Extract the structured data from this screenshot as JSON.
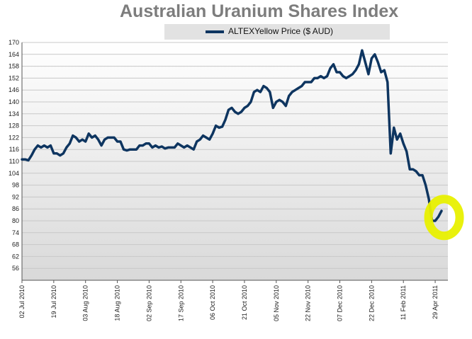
{
  "chart_data": {
    "type": "line",
    "title": "Australian Uranium Shares Index",
    "series": [
      {
        "name": "ALTEXYellow Price ($ AUD)",
        "color": "#0e3560",
        "points": [
          [
            0,
            111
          ],
          [
            1,
            111
          ],
          [
            2,
            110.5
          ],
          [
            3,
            113
          ],
          [
            4,
            116
          ],
          [
            5,
            118
          ],
          [
            6,
            117
          ],
          [
            7,
            118
          ],
          [
            8,
            117
          ],
          [
            9,
            118
          ],
          [
            10,
            114
          ],
          [
            11,
            114
          ],
          [
            12,
            113
          ],
          [
            13,
            114
          ],
          [
            14,
            117
          ],
          [
            15,
            119
          ],
          [
            16,
            123
          ],
          [
            17,
            122
          ],
          [
            18,
            120
          ],
          [
            19,
            121
          ],
          [
            20,
            120
          ],
          [
            21,
            124
          ],
          [
            22,
            122
          ],
          [
            23,
            123
          ],
          [
            24,
            121
          ],
          [
            25,
            118
          ],
          [
            26,
            121
          ],
          [
            27,
            122
          ],
          [
            28,
            122
          ],
          [
            29,
            122
          ],
          [
            30,
            120
          ],
          [
            31,
            120
          ],
          [
            32,
            116
          ],
          [
            33,
            115.5
          ],
          [
            34,
            116
          ],
          [
            35,
            116
          ],
          [
            36,
            116
          ],
          [
            37,
            118
          ],
          [
            38,
            118
          ],
          [
            39,
            119
          ],
          [
            40,
            119
          ],
          [
            41,
            117
          ],
          [
            42,
            118
          ],
          [
            43,
            117
          ],
          [
            44,
            117.5
          ],
          [
            45,
            116.5
          ],
          [
            46,
            117
          ],
          [
            47,
            117
          ],
          [
            48,
            117
          ],
          [
            49,
            119
          ],
          [
            50,
            118
          ],
          [
            51,
            117
          ],
          [
            52,
            118
          ],
          [
            53,
            117
          ],
          [
            54,
            116
          ],
          [
            55,
            120
          ],
          [
            56,
            121
          ],
          [
            57,
            123
          ],
          [
            58,
            122
          ],
          [
            59,
            121
          ],
          [
            60,
            124
          ],
          [
            61,
            128
          ],
          [
            62,
            127
          ],
          [
            63,
            127.5
          ],
          [
            64,
            131
          ],
          [
            65,
            136
          ],
          [
            66,
            137
          ],
          [
            67,
            135
          ],
          [
            68,
            134
          ],
          [
            69,
            135
          ],
          [
            70,
            137
          ],
          [
            71,
            138
          ],
          [
            72,
            140
          ],
          [
            73,
            145
          ],
          [
            74,
            146
          ],
          [
            75,
            145
          ],
          [
            76,
            148
          ],
          [
            77,
            147
          ],
          [
            78,
            145
          ],
          [
            79,
            137
          ],
          [
            80,
            140
          ],
          [
            81,
            141
          ],
          [
            82,
            140
          ],
          [
            83,
            138
          ],
          [
            84,
            143
          ],
          [
            85,
            145
          ],
          [
            86,
            146
          ],
          [
            87,
            147
          ],
          [
            88,
            148
          ],
          [
            89,
            150
          ],
          [
            90,
            150
          ],
          [
            91,
            150
          ],
          [
            92,
            152
          ],
          [
            93,
            152
          ],
          [
            94,
            153
          ],
          [
            95,
            152
          ],
          [
            96,
            153
          ],
          [
            97,
            157
          ],
          [
            98,
            159
          ],
          [
            99,
            155
          ],
          [
            100,
            155
          ],
          [
            101,
            153
          ],
          [
            102,
            152
          ],
          [
            103,
            153
          ],
          [
            104,
            154
          ],
          [
            105,
            156
          ],
          [
            106,
            159
          ],
          [
            107,
            166
          ],
          [
            108,
            160
          ],
          [
            109,
            154
          ],
          [
            110,
            162
          ],
          [
            111,
            164
          ],
          [
            112,
            160
          ],
          [
            113,
            155
          ],
          [
            114,
            156
          ],
          [
            115,
            150
          ],
          [
            116,
            114
          ],
          [
            117,
            127
          ],
          [
            118,
            121
          ],
          [
            119,
            124
          ],
          [
            120,
            119
          ],
          [
            121,
            115
          ],
          [
            122,
            106
          ],
          [
            123,
            106
          ],
          [
            124,
            105
          ],
          [
            125,
            103
          ],
          [
            126,
            103
          ],
          [
            127,
            98
          ],
          [
            128,
            91
          ],
          [
            129,
            80
          ],
          [
            130,
            80
          ],
          [
            131,
            82
          ],
          [
            132,
            85
          ]
        ]
      }
    ],
    "xticks": [
      {
        "x": 0,
        "label": "02 Jul 2010"
      },
      {
        "x": 10,
        "label": "19 Jul 2010"
      },
      {
        "x": 20,
        "label": "03 Aug 2010"
      },
      {
        "x": 30,
        "label": "18 Aug 2010"
      },
      {
        "x": 40,
        "label": "02 Sep 2010"
      },
      {
        "x": 50,
        "label": "17 Sep 2010"
      },
      {
        "x": 60,
        "label": "06 Oct 2010"
      },
      {
        "x": 70,
        "label": "21 Oct 2010"
      },
      {
        "x": 80,
        "label": "05 Nov 2010"
      },
      {
        "x": 90,
        "label": "22 Nov 2010"
      },
      {
        "x": 100,
        "label": "07 Dec 2010"
      },
      {
        "x": 110,
        "label": "22 Dec 2010"
      },
      {
        "x": 120,
        "label": "11 Feb 2011"
      },
      {
        "x": 130,
        "label": "29 Apr 2011"
      }
    ],
    "yticks": [
      56,
      62,
      68,
      74,
      80,
      86,
      92,
      98,
      104,
      110,
      116,
      122,
      128,
      134,
      140,
      146,
      152,
      158,
      164,
      170
    ],
    "xlim": [
      0,
      134
    ],
    "ylim": [
      50,
      170
    ],
    "grid": true,
    "legend_position": "top",
    "annotation": {
      "type": "highlight-circle",
      "color": "#e8f000",
      "near_x": 131,
      "near_y": 81
    }
  }
}
